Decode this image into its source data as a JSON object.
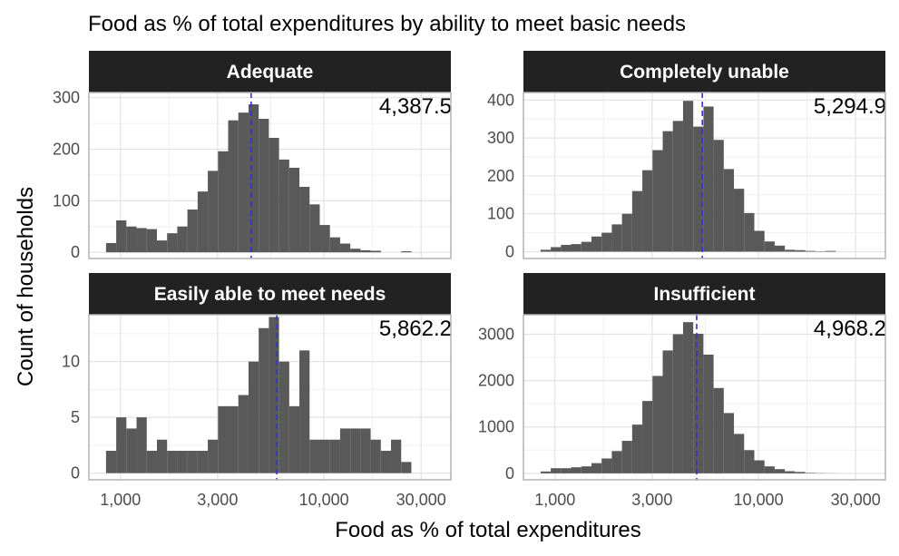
{
  "chart_data": {
    "type": "bar",
    "title": "Food as % of total expenditures by ability to meet basic needs",
    "xlabel": "Food as % of total expenditures",
    "ylabel": "Count of households",
    "x_scale": "log10",
    "xlim": [
      700,
      42000
    ],
    "x_ticks": [
      1000,
      3000,
      10000,
      30000
    ],
    "x_tick_labels": [
      "1,000",
      "3,000",
      "10,000",
      "30,000"
    ],
    "bins": {
      "count": 30,
      "first_center": 900,
      "log10_width": 0.05
    },
    "colors": {
      "bar": "#595959",
      "median_line": "#3333cc",
      "strip": "#222222",
      "grid": "#e3e3e3",
      "border": "#b3b3b3"
    },
    "grid": true,
    "panels": [
      {
        "label": "Adequate",
        "annotation": "4,387.5",
        "median": 4387.5,
        "ylim": [
          -12,
          310
        ],
        "y_ticks": [
          0,
          100,
          200,
          300
        ],
        "y_tick_labels": [
          "0",
          "100",
          "200",
          "300"
        ],
        "values": [
          18,
          62,
          50,
          47,
          45,
          23,
          37,
          50,
          83,
          118,
          158,
          196,
          256,
          271,
          287,
          259,
          222,
          180,
          164,
          127,
          93,
          53,
          29,
          17,
          7,
          4,
          3,
          0,
          0,
          2
        ]
      },
      {
        "label": "Completely unable",
        "annotation": "5,294.9",
        "median": 5294.9,
        "ylim": [
          -18,
          420
        ],
        "y_ticks": [
          0,
          100,
          200,
          300,
          400
        ],
        "y_tick_labels": [
          "0",
          "100",
          "200",
          "300",
          "400"
        ],
        "values": [
          5,
          12,
          18,
          20,
          26,
          40,
          50,
          72,
          100,
          160,
          215,
          268,
          318,
          345,
          398,
          330,
          383,
          295,
          218,
          166,
          102,
          55,
          27,
          16,
          5,
          4,
          2,
          1,
          2,
          0
        ]
      },
      {
        "label": "Easily able to meet needs",
        "annotation": "5,862.2",
        "median": 5862.2,
        "ylim": [
          -0.6,
          14.2
        ],
        "y_ticks": [
          0,
          5,
          10
        ],
        "y_tick_labels": [
          "0",
          "5",
          "10"
        ],
        "values": [
          2,
          5,
          4,
          5,
          2,
          3,
          2,
          2,
          2,
          2,
          3,
          6,
          6,
          7,
          10,
          13,
          14,
          10,
          6,
          11,
          3,
          3,
          3,
          4,
          4,
          4,
          3,
          2,
          3,
          1
        ]
      },
      {
        "label": "Insufficient",
        "annotation": "4,968.2",
        "median": 4968.2,
        "ylim": [
          -140,
          3420
        ],
        "y_ticks": [
          0,
          1000,
          2000,
          3000
        ],
        "y_tick_labels": [
          "0",
          "1000",
          "2000",
          "3000"
        ],
        "values": [
          40,
          110,
          110,
          130,
          150,
          220,
          320,
          480,
          700,
          1050,
          1560,
          2100,
          2650,
          3000,
          3260,
          3010,
          2560,
          1840,
          1300,
          850,
          500,
          280,
          150,
          90,
          45,
          30,
          10,
          5,
          2,
          0
        ]
      }
    ]
  }
}
